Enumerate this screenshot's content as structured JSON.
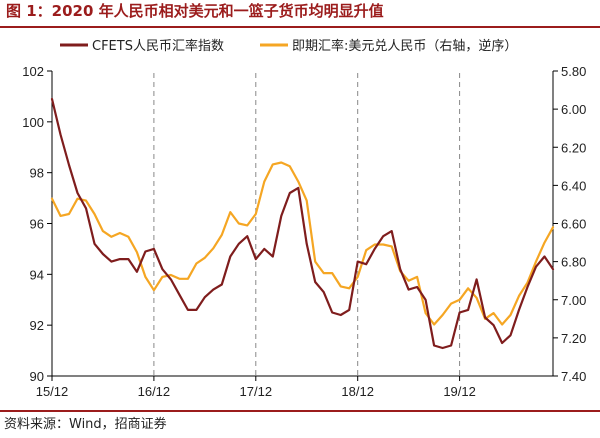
{
  "title": "图 1：2020 年人民币相对美元和一篮子货币均明显升值",
  "source": "资料来源：Wind，招商证券",
  "colors": {
    "accent": "#9b1c1c",
    "series_cfets": "#7f1d1d",
    "series_usdcny": "#f5a623",
    "dashed_line": "#888888"
  },
  "chart_data": {
    "type": "line",
    "title": "图 1：2020 年人民币相对美元和一篮子货币均明显升值",
    "legend_position": "top",
    "grid": false,
    "x_tick_labels": [
      "15/12",
      "16/12",
      "17/12",
      "18/12",
      "19/12"
    ],
    "x_range": [
      "2015-12",
      "2020-11"
    ],
    "vertical_dashed_lines_at": [
      "16/12",
      "17/12",
      "18/12",
      "19/12"
    ],
    "y_left": {
      "label": "",
      "range": [
        90,
        102
      ],
      "ticks": [
        "90",
        "92",
        "94",
        "96",
        "98",
        "100",
        "102"
      ]
    },
    "y_right": {
      "label": "",
      "range": [
        5.8,
        7.4
      ],
      "inverted": true,
      "ticks": [
        "5.80",
        "6.00",
        "6.20",
        "6.40",
        "6.60",
        "6.80",
        "7.00",
        "7.20",
        "7.40"
      ]
    },
    "series": [
      {
        "name": "CFETS人民币汇率指数",
        "axis": "left",
        "x": [
          "2015-12",
          "2016-01",
          "2016-02",
          "2016-03",
          "2016-04",
          "2016-05",
          "2016-06",
          "2016-07",
          "2016-08",
          "2016-09",
          "2016-10",
          "2016-11",
          "2016-12",
          "2017-01",
          "2017-02",
          "2017-03",
          "2017-04",
          "2017-05",
          "2017-06",
          "2017-07",
          "2017-08",
          "2017-09",
          "2017-10",
          "2017-11",
          "2017-12",
          "2018-01",
          "2018-02",
          "2018-03",
          "2018-04",
          "2018-05",
          "2018-06",
          "2018-07",
          "2018-08",
          "2018-09",
          "2018-10",
          "2018-11",
          "2018-12",
          "2019-01",
          "2019-02",
          "2019-03",
          "2019-04",
          "2019-05",
          "2019-06",
          "2019-07",
          "2019-08",
          "2019-09",
          "2019-10",
          "2019-11",
          "2019-12",
          "2020-01",
          "2020-02",
          "2020-03",
          "2020-04",
          "2020-05",
          "2020-06",
          "2020-07",
          "2020-08",
          "2020-09",
          "2020-10",
          "2020-11"
        ],
        "values": [
          100.9,
          99.5,
          98.3,
          97.2,
          96.6,
          95.2,
          94.8,
          94.5,
          94.6,
          94.6,
          94.1,
          94.9,
          95.0,
          94.2,
          93.8,
          93.2,
          92.6,
          92.6,
          93.1,
          93.4,
          93.6,
          94.7,
          95.2,
          95.5,
          94.6,
          95.0,
          94.7,
          96.3,
          97.2,
          97.4,
          95.2,
          93.7,
          93.3,
          92.5,
          92.4,
          92.6,
          94.5,
          94.4,
          95.0,
          95.5,
          95.7,
          94.2,
          93.4,
          93.5,
          93.0,
          91.2,
          91.1,
          91.2,
          92.5,
          92.6,
          93.8,
          92.3,
          92.0,
          91.3,
          91.6,
          92.6,
          93.5,
          94.3,
          94.7,
          94.2
        ]
      },
      {
        "name": "即期汇率:美元兑人民币（右轴，逆序）",
        "axis": "right",
        "x": [
          "2015-12",
          "2016-01",
          "2016-02",
          "2016-03",
          "2016-04",
          "2016-05",
          "2016-06",
          "2016-07",
          "2016-08",
          "2016-09",
          "2016-10",
          "2016-11",
          "2016-12",
          "2017-01",
          "2017-02",
          "2017-03",
          "2017-04",
          "2017-05",
          "2017-06",
          "2017-07",
          "2017-08",
          "2017-09",
          "2017-10",
          "2017-11",
          "2017-12",
          "2018-01",
          "2018-02",
          "2018-03",
          "2018-04",
          "2018-05",
          "2018-06",
          "2018-07",
          "2018-08",
          "2018-09",
          "2018-10",
          "2018-11",
          "2018-12",
          "2019-01",
          "2019-02",
          "2019-03",
          "2019-04",
          "2019-05",
          "2019-06",
          "2019-07",
          "2019-08",
          "2019-09",
          "2019-10",
          "2019-11",
          "2019-12",
          "2020-01",
          "2020-02",
          "2020-03",
          "2020-04",
          "2020-05",
          "2020-06",
          "2020-07",
          "2020-08",
          "2020-09",
          "2020-10",
          "2020-11"
        ],
        "values": [
          6.47,
          6.56,
          6.55,
          6.47,
          6.48,
          6.55,
          6.64,
          6.67,
          6.65,
          6.67,
          6.75,
          6.88,
          6.95,
          6.88,
          6.87,
          6.89,
          6.89,
          6.81,
          6.78,
          6.73,
          6.66,
          6.54,
          6.6,
          6.61,
          6.55,
          6.38,
          6.29,
          6.28,
          6.3,
          6.38,
          6.48,
          6.8,
          6.86,
          6.86,
          6.93,
          6.94,
          6.88,
          6.74,
          6.71,
          6.71,
          6.72,
          6.85,
          6.9,
          6.88,
          7.07,
          7.13,
          7.08,
          7.02,
          7.0,
          6.94,
          6.99,
          7.1,
          7.07,
          7.13,
          7.08,
          6.98,
          6.91,
          6.8,
          6.7,
          6.62
        ]
      }
    ]
  }
}
